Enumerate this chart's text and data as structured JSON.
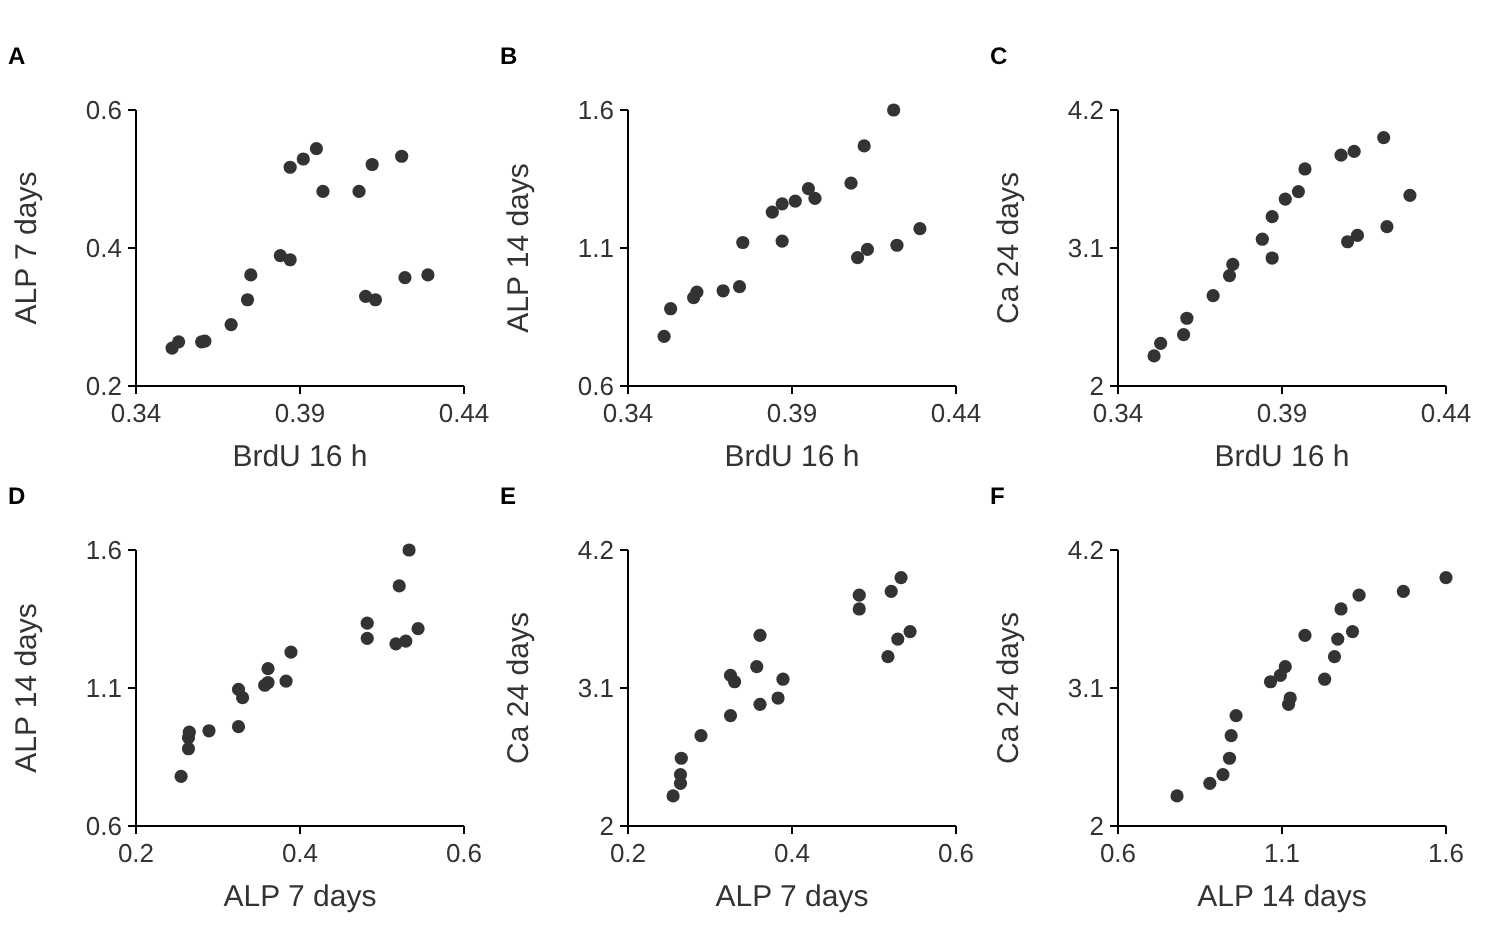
{
  "chart_data": [
    {
      "type": "scatter",
      "title": "A",
      "xlabel": "BrdU 16 h",
      "ylabel": "ALP 7 days",
      "xlim": [
        0.34,
        0.44
      ],
      "xticks": [
        0.34,
        0.39,
        0.44
      ],
      "ylim": [
        0.2,
        0.6
      ],
      "yticks": [
        0.2,
        0.4,
        0.6
      ],
      "marker": "circle",
      "x": [
        0.351,
        0.353,
        0.36,
        0.361,
        0.369,
        0.374,
        0.375,
        0.384,
        0.387,
        0.387,
        0.391,
        0.395,
        0.397,
        0.408,
        0.412,
        0.421,
        0.41,
        0.413,
        0.422,
        0.429
      ],
      "series": [
        {
          "color": "#333333",
          "values": [
            0.255,
            0.264,
            0.264,
            0.265,
            0.289,
            0.325,
            0.361,
            0.389,
            0.383,
            0.517,
            0.529,
            0.544,
            0.482,
            0.482,
            0.521,
            0.533,
            0.33,
            0.325,
            0.357,
            0.361
          ]
        }
      ]
    },
    {
      "type": "scatter",
      "title": "B",
      "xlabel": "BrdU 16 h",
      "ylabel": "ALP 14 days",
      "xlim": [
        0.34,
        0.44
      ],
      "xticks": [
        0.34,
        0.39,
        0.44
      ],
      "ylim": [
        0.6,
        1.6
      ],
      "yticks": [
        0.6,
        1.1,
        1.6
      ],
      "marker": "circle",
      "x": [
        0.351,
        0.353,
        0.36,
        0.361,
        0.369,
        0.374,
        0.375,
        0.384,
        0.387,
        0.387,
        0.391,
        0.395,
        0.397,
        0.408,
        0.412,
        0.421,
        0.41,
        0.413,
        0.422,
        0.429
      ],
      "series": [
        {
          "color": "#333333",
          "values": [
            0.78,
            0.88,
            0.92,
            0.94,
            0.945,
            0.96,
            1.12,
            1.23,
            1.125,
            1.26,
            1.27,
            1.315,
            1.28,
            1.335,
            1.47,
            1.6,
            1.065,
            1.095,
            1.11,
            1.17
          ]
        }
      ]
    },
    {
      "type": "scatter",
      "title": "C",
      "xlabel": "BrdU 16 h",
      "ylabel": "Ca 24 days",
      "xlim": [
        0.34,
        0.44
      ],
      "xticks": [
        0.34,
        0.39,
        0.44
      ],
      "ylim": [
        2,
        4.2
      ],
      "yticks": [
        2,
        3.1,
        4.2
      ],
      "marker": "circle",
      "x": [
        0.351,
        0.353,
        0.36,
        0.361,
        0.369,
        0.374,
        0.375,
        0.384,
        0.387,
        0.387,
        0.391,
        0.395,
        0.397,
        0.408,
        0.412,
        0.421,
        0.41,
        0.413,
        0.422,
        0.429
      ],
      "series": [
        {
          "color": "#333333",
          "values": [
            2.24,
            2.34,
            2.41,
            2.54,
            2.72,
            2.88,
            2.97,
            3.17,
            3.02,
            3.35,
            3.49,
            3.55,
            3.73,
            3.84,
            3.87,
            3.98,
            3.15,
            3.2,
            3.27,
            3.52
          ]
        }
      ]
    },
    {
      "type": "scatter",
      "title": "D",
      "xlabel": "ALP 7 days",
      "ylabel": "ALP 14 days",
      "xlim": [
        0.2,
        0.6
      ],
      "xticks": [
        0.2,
        0.4,
        0.6
      ],
      "ylim": [
        0.6,
        1.6
      ],
      "yticks": [
        0.6,
        1.1,
        1.6
      ],
      "marker": "circle",
      "x": [
        0.255,
        0.264,
        0.264,
        0.265,
        0.289,
        0.325,
        0.361,
        0.389,
        0.383,
        0.517,
        0.529,
        0.544,
        0.482,
        0.482,
        0.521,
        0.533,
        0.33,
        0.325,
        0.357,
        0.361
      ],
      "series": [
        {
          "color": "#333333",
          "values": [
            0.78,
            0.88,
            0.92,
            0.94,
            0.945,
            0.96,
            1.12,
            1.23,
            1.125,
            1.26,
            1.27,
            1.315,
            1.28,
            1.335,
            1.47,
            1.6,
            1.065,
            1.095,
            1.11,
            1.17
          ]
        }
      ]
    },
    {
      "type": "scatter",
      "title": "E",
      "xlabel": "ALP 7 days",
      "ylabel": "Ca 24 days",
      "xlim": [
        0.2,
        0.6
      ],
      "xticks": [
        0.2,
        0.4,
        0.6
      ],
      "ylim": [
        2,
        4.2
      ],
      "yticks": [
        2,
        3.1,
        4.2
      ],
      "marker": "circle",
      "x": [
        0.255,
        0.264,
        0.264,
        0.265,
        0.289,
        0.325,
        0.361,
        0.389,
        0.383,
        0.517,
        0.529,
        0.544,
        0.482,
        0.482,
        0.521,
        0.533,
        0.33,
        0.325,
        0.357,
        0.361
      ],
      "series": [
        {
          "color": "#333333",
          "values": [
            2.24,
            2.34,
            2.41,
            2.54,
            2.72,
            2.88,
            2.97,
            3.17,
            3.02,
            3.35,
            3.49,
            3.55,
            3.73,
            3.84,
            3.87,
            3.98,
            3.15,
            3.2,
            3.27,
            3.52
          ]
        }
      ]
    },
    {
      "type": "scatter",
      "title": "F",
      "xlabel": "ALP 14 days",
      "ylabel": "Ca 24 days",
      "xlim": [
        0.6,
        1.6
      ],
      "xticks": [
        0.6,
        1.1,
        1.6
      ],
      "ylim": [
        2,
        4.2
      ],
      "yticks": [
        2,
        3.1,
        4.2
      ],
      "marker": "circle",
      "x": [
        0.78,
        0.88,
        0.92,
        0.94,
        0.945,
        0.96,
        1.12,
        1.23,
        1.125,
        1.26,
        1.27,
        1.315,
        1.28,
        1.335,
        1.47,
        1.6,
        1.065,
        1.095,
        1.11,
        1.17
      ],
      "series": [
        {
          "color": "#333333",
          "values": [
            2.24,
            2.34,
            2.41,
            2.54,
            2.72,
            2.88,
            2.97,
            3.17,
            3.02,
            3.35,
            3.49,
            3.55,
            3.73,
            3.84,
            3.87,
            3.98,
            3.15,
            3.2,
            3.27,
            3.52
          ]
        }
      ]
    }
  ]
}
